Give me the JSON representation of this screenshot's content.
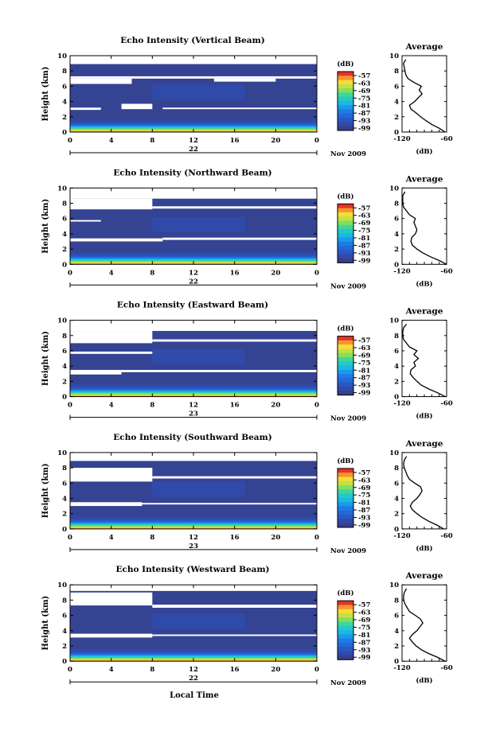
{
  "figure": {
    "footer_label": "Local Time"
  },
  "chart_data": [
    {
      "type": "heatmap",
      "title": "Echo Intensity (Vertical Beam)",
      "ylabel": "Height (km)",
      "xlim": [
        0,
        24
      ],
      "ylim": [
        0,
        10
      ],
      "x_ticks": [
        "0",
        "4",
        "8",
        "12",
        "16",
        "20",
        "0"
      ],
      "y_ticks": [
        "0",
        "2",
        "4",
        "6",
        "8",
        "10"
      ],
      "date_day": "22",
      "date_month": "Nov 2009",
      "colorbar": {
        "label": "(dB)",
        "ticks": [
          "-57",
          "-63",
          "-69",
          "-75",
          "-81",
          "-87",
          "-93",
          "-99"
        ]
      },
      "gaps": [
        [
          0,
          24,
          8.9,
          10
        ],
        [
          0,
          24,
          7.0,
          7.3
        ],
        [
          0,
          6,
          6.3,
          7.0
        ],
        [
          14,
          20,
          6.6,
          7.0
        ],
        [
          5,
          8,
          3.0,
          3.7
        ],
        [
          0,
          3,
          2.9,
          3.2
        ],
        [
          9,
          24,
          3.0,
          3.2
        ]
      ],
      "avg_profile": {
        "title": "Average",
        "xlabel": "(dB)",
        "xlim": [
          -120,
          -60
        ],
        "x_ticks": [
          "-120",
          "-60"
        ],
        "heights": [
          0,
          0.5,
          1,
          1.5,
          2,
          2.5,
          3,
          3.5,
          4,
          4.5,
          5,
          5.5,
          6,
          6.5,
          7,
          7.5,
          8,
          8.5,
          9,
          9.5
        ],
        "db": [
          -62,
          -70,
          -80,
          -88,
          -95,
          -101,
          -108,
          -110,
          -103,
          -98,
          -93,
          -97,
          -94,
          -104,
          -112,
          -115,
          -116,
          -117,
          -118,
          -115
        ]
      }
    },
    {
      "type": "heatmap",
      "title": "Echo Intensity (Northward Beam)",
      "ylabel": "Height (km)",
      "xlim": [
        0,
        24
      ],
      "ylim": [
        0,
        10
      ],
      "x_ticks": [
        "0",
        "4",
        "8",
        "12",
        "16",
        "20",
        "0"
      ],
      "y_ticks": [
        "0",
        "2",
        "4",
        "6",
        "8",
        "10"
      ],
      "date_day": "22",
      "date_month": "Nov 2009",
      "colorbar": {
        "label": "(dB)",
        "ticks": [
          "-57",
          "-63",
          "-69",
          "-75",
          "-81",
          "-87",
          "-93",
          "-99"
        ]
      },
      "gaps": [
        [
          0,
          24,
          8.6,
          10
        ],
        [
          0,
          8,
          7.2,
          8.6
        ],
        [
          8,
          24,
          7.3,
          7.6
        ],
        [
          0,
          9,
          3.0,
          3.4
        ],
        [
          9,
          24,
          3.2,
          3.5
        ],
        [
          0,
          3,
          5.6,
          5.8
        ]
      ],
      "avg_profile": {
        "title": "Average",
        "xlabel": "(dB)",
        "xlim": [
          -120,
          -60
        ],
        "x_ticks": [
          "-120",
          "-60"
        ],
        "heights": [
          0,
          0.5,
          1,
          1.5,
          2,
          2.5,
          3,
          3.5,
          4,
          4.5,
          5,
          5.5,
          6,
          6.5,
          7,
          7.5,
          8,
          8.5,
          9,
          9.5
        ],
        "db": [
          -60,
          -70,
          -82,
          -92,
          -100,
          -106,
          -108,
          -107,
          -102,
          -100,
          -102,
          -104,
          -102,
          -110,
          -114,
          -118,
          -119,
          -119,
          -119,
          -116
        ]
      }
    },
    {
      "type": "heatmap",
      "title": "Echo Intensity (Eastward Beam)",
      "ylabel": "Height (km)",
      "xlim": [
        0,
        24
      ],
      "ylim": [
        0,
        10
      ],
      "x_ticks": [
        "0",
        "4",
        "8",
        "12",
        "16",
        "20",
        "0"
      ],
      "y_ticks": [
        "0",
        "2",
        "4",
        "6",
        "8",
        "10"
      ],
      "date_day": "23",
      "date_month": "Nov 2009",
      "colorbar": {
        "label": "(dB)",
        "ticks": [
          "-57",
          "-63",
          "-69",
          "-75",
          "-81",
          "-87",
          "-93",
          "-99"
        ]
      },
      "gaps": [
        [
          0,
          24,
          8.6,
          10
        ],
        [
          0,
          8,
          7.0,
          8.6
        ],
        [
          8,
          24,
          7.2,
          7.5
        ],
        [
          0,
          5,
          2.9,
          3.5
        ],
        [
          5,
          24,
          3.2,
          3.5
        ],
        [
          0,
          8,
          5.6,
          5.9
        ]
      ],
      "avg_profile": {
        "title": "Average",
        "xlabel": "(dB)",
        "xlim": [
          -120,
          -60
        ],
        "x_ticks": [
          "-120",
          "-60"
        ],
        "heights": [
          0,
          0.5,
          1,
          1.5,
          2,
          2.5,
          3,
          3.5,
          4,
          4.5,
          5,
          5.5,
          6,
          6.5,
          7,
          7.5,
          8,
          8.5,
          9,
          9.5
        ],
        "db": [
          -62,
          -72,
          -84,
          -94,
          -100,
          -105,
          -109,
          -108,
          -102,
          -104,
          -98,
          -104,
          -100,
          -110,
          -114,
          -118,
          -119,
          -119,
          -118,
          -114
        ]
      }
    },
    {
      "type": "heatmap",
      "title": "Echo Intensity (Southward Beam)",
      "ylabel": "Height (km)",
      "xlim": [
        0,
        24
      ],
      "ylim": [
        0,
        10
      ],
      "x_ticks": [
        "0",
        "4",
        "8",
        "12",
        "16",
        "20",
        "0"
      ],
      "y_ticks": [
        "0",
        "2",
        "4",
        "6",
        "8",
        "10"
      ],
      "date_day": "23",
      "date_month": "Nov 2009",
      "colorbar": {
        "label": "(dB)",
        "ticks": [
          "-57",
          "-63",
          "-69",
          "-75",
          "-81",
          "-87",
          "-93",
          "-99"
        ]
      },
      "gaps": [
        [
          0,
          24,
          8.9,
          10
        ],
        [
          0,
          8,
          6.2,
          8.0
        ],
        [
          8,
          24,
          6.6,
          6.9
        ],
        [
          0,
          7,
          3.0,
          3.5
        ],
        [
          7,
          24,
          3.2,
          3.4
        ]
      ],
      "avg_profile": {
        "title": "Average",
        "xlabel": "(dB)",
        "xlim": [
          -120,
          -60
        ],
        "x_ticks": [
          "-120",
          "-60"
        ],
        "heights": [
          0,
          0.5,
          1,
          1.5,
          2,
          2.5,
          3,
          3.5,
          4,
          4.5,
          5,
          5.5,
          6,
          6.5,
          7,
          7.5,
          8,
          8.5,
          9,
          9.5
        ],
        "db": [
          -64,
          -73,
          -84,
          -93,
          -100,
          -106,
          -109,
          -106,
          -100,
          -96,
          -93,
          -95,
          -103,
          -110,
          -113,
          -115,
          -117,
          -118,
          -117,
          -114
        ]
      }
    },
    {
      "type": "heatmap",
      "title": "Echo Intensity (Westward Beam)",
      "ylabel": "Height (km)",
      "xlim": [
        0,
        24
      ],
      "ylim": [
        0,
        10
      ],
      "x_ticks": [
        "0",
        "4",
        "8",
        "12",
        "16",
        "20",
        "0"
      ],
      "y_ticks": [
        "0",
        "2",
        "4",
        "6",
        "8",
        "10"
      ],
      "date_day": "22",
      "date_month": "Nov 2009",
      "colorbar": {
        "label": "(dB)",
        "ticks": [
          "-57",
          "-63",
          "-69",
          "-75",
          "-81",
          "-87",
          "-93",
          "-99"
        ]
      },
      "gaps": [
        [
          0,
          24,
          9.2,
          10
        ],
        [
          0,
          8,
          7.3,
          9.0
        ],
        [
          8,
          24,
          7.0,
          7.4
        ],
        [
          0,
          8,
          3.1,
          3.6
        ],
        [
          8,
          24,
          3.3,
          3.5
        ]
      ],
      "avg_profile": {
        "title": "Average",
        "xlabel": "(dB)",
        "xlim": [
          -120,
          -60
        ],
        "x_ticks": [
          "-120",
          "-60"
        ],
        "heights": [
          0,
          0.5,
          1,
          1.5,
          2,
          2.5,
          3,
          3.5,
          4,
          4.5,
          5,
          5.5,
          6,
          6.5,
          7,
          7.5,
          8,
          8.5,
          9,
          9.5
        ],
        "db": [
          -62,
          -72,
          -84,
          -94,
          -101,
          -106,
          -110,
          -106,
          -100,
          -96,
          -92,
          -95,
          -102,
          -110,
          -113,
          -116,
          -118,
          -118,
          -117,
          -114
        ]
      }
    }
  ]
}
